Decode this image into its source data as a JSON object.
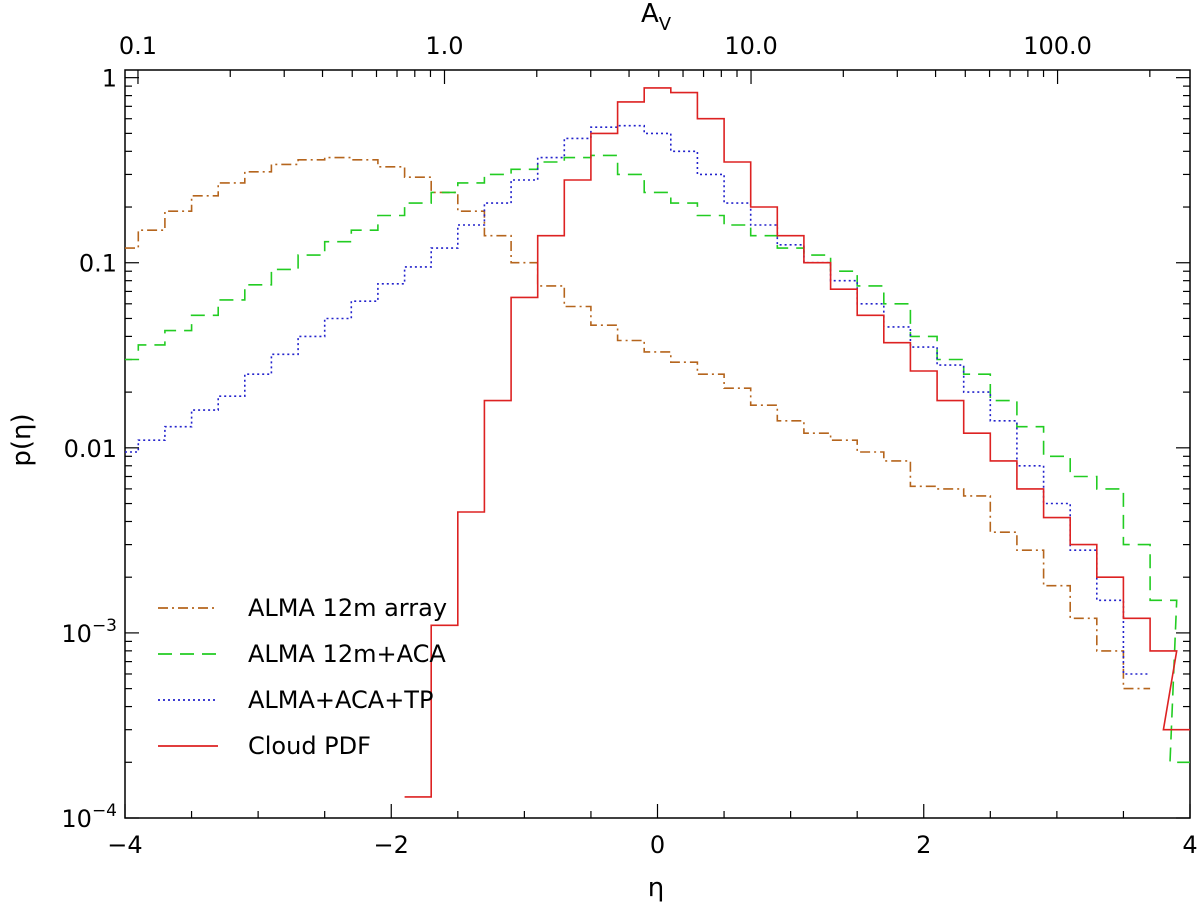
{
  "chart_data": {
    "type": "line",
    "xlabel": "η",
    "ylabel": "p(η)",
    "top_axis_label": "A",
    "top_axis_label_sub": "V",
    "xlim": [
      -4,
      4
    ],
    "ylim": [
      0.0001,
      1.1
    ],
    "y_scale": "log",
    "x_ticks": [
      -4,
      -2,
      0,
      2,
      4
    ],
    "x_tick_labels": [
      "−4",
      "−2",
      "0",
      "2",
      "4"
    ],
    "top_ticks": [
      0.1,
      1.0,
      10.0,
      100.0
    ],
    "top_tick_labels": [
      "0.1",
      "1.0",
      "10.0",
      "100.0"
    ],
    "top_axis_eta_of_av_1": -1.6,
    "y_ticks": [
      0.0001,
      0.001,
      0.01,
      0.1,
      1
    ],
    "y_tick_labels": [
      {
        "base": "10",
        "exp": "−4"
      },
      {
        "base": "10",
        "exp": "−3"
      },
      {
        "text": "0.01"
      },
      {
        "text": "0.1"
      },
      {
        "text": "1"
      }
    ],
    "legend_position": "bottom-left",
    "series": [
      {
        "name": "ALMA 12m array",
        "color": "#b5651d",
        "dash": "10,4,2,4",
        "x": [
          -4.0,
          -3.8,
          -3.6,
          -3.4,
          -3.2,
          -3.0,
          -2.8,
          -2.6,
          -2.4,
          -2.2,
          -2.0,
          -1.8,
          -1.6,
          -1.4,
          -1.2,
          -1.0,
          -0.8,
          -0.6,
          -0.4,
          -0.2,
          0.0,
          0.2,
          0.4,
          0.6,
          0.8,
          1.0,
          1.2,
          1.4,
          1.6,
          1.8,
          2.0,
          2.2,
          2.4,
          2.6,
          2.8,
          3.0,
          3.2,
          3.4,
          3.6
        ],
        "values": [
          0.12,
          0.15,
          0.19,
          0.23,
          0.27,
          0.31,
          0.34,
          0.36,
          0.37,
          0.36,
          0.33,
          0.29,
          0.24,
          0.19,
          0.14,
          0.1,
          0.075,
          0.058,
          0.046,
          0.038,
          0.033,
          0.029,
          0.025,
          0.021,
          0.017,
          0.014,
          0.012,
          0.011,
          0.0095,
          0.0085,
          0.0062,
          0.006,
          0.0055,
          0.0035,
          0.0028,
          0.0018,
          0.0012,
          0.0008,
          0.0005
        ]
      },
      {
        "name": "ALMA 12m+ACA",
        "color": "#22cc22",
        "dash": "14,8",
        "x": [
          -4.0,
          -3.8,
          -3.6,
          -3.4,
          -3.2,
          -3.0,
          -2.8,
          -2.6,
          -2.4,
          -2.2,
          -2.0,
          -1.8,
          -1.6,
          -1.4,
          -1.2,
          -1.0,
          -0.8,
          -0.6,
          -0.4,
          -0.2,
          0.0,
          0.2,
          0.4,
          0.6,
          0.8,
          1.0,
          1.2,
          1.4,
          1.6,
          1.8,
          2.0,
          2.2,
          2.4,
          2.6,
          2.8,
          3.0,
          3.2,
          3.4,
          3.6,
          3.8,
          3.95
        ],
        "values": [
          0.03,
          0.036,
          0.043,
          0.052,
          0.063,
          0.076,
          0.092,
          0.11,
          0.13,
          0.15,
          0.18,
          0.21,
          0.24,
          0.27,
          0.3,
          0.32,
          0.35,
          0.37,
          0.38,
          0.3,
          0.24,
          0.21,
          0.18,
          0.16,
          0.14,
          0.12,
          0.11,
          0.09,
          0.075,
          0.06,
          0.04,
          0.03,
          0.025,
          0.018,
          0.013,
          0.009,
          0.007,
          0.006,
          0.003,
          0.0015,
          0.0002
        ]
      },
      {
        "name": "ALMA+ACA+TP",
        "color": "#2222cc",
        "dash": "2,3",
        "x": [
          -4.0,
          -3.8,
          -3.6,
          -3.4,
          -3.2,
          -3.0,
          -2.8,
          -2.6,
          -2.4,
          -2.2,
          -2.0,
          -1.8,
          -1.6,
          -1.4,
          -1.2,
          -1.0,
          -0.8,
          -0.6,
          -0.4,
          -0.2,
          0.0,
          0.2,
          0.4,
          0.6,
          0.8,
          1.0,
          1.2,
          1.4,
          1.6,
          1.8,
          2.0,
          2.2,
          2.4,
          2.6,
          2.8,
          3.0,
          3.2,
          3.4,
          3.6
        ],
        "values": [
          0.0095,
          0.011,
          0.013,
          0.016,
          0.019,
          0.025,
          0.032,
          0.04,
          0.05,
          0.062,
          0.077,
          0.095,
          0.12,
          0.16,
          0.21,
          0.28,
          0.37,
          0.47,
          0.54,
          0.55,
          0.5,
          0.4,
          0.3,
          0.21,
          0.16,
          0.125,
          0.1,
          0.08,
          0.06,
          0.045,
          0.035,
          0.028,
          0.02,
          0.014,
          0.008,
          0.005,
          0.0028,
          0.0015,
          0.0006
        ]
      },
      {
        "name": "Cloud PDF",
        "color": "#dd2222",
        "dash": "",
        "x": [
          -1.8,
          -1.6,
          -1.4,
          -1.2,
          -1.0,
          -0.8,
          -0.6,
          -0.4,
          -0.2,
          0.0,
          0.2,
          0.4,
          0.6,
          0.8,
          1.0,
          1.2,
          1.4,
          1.6,
          1.8,
          2.0,
          2.2,
          2.4,
          2.6,
          2.8,
          3.0,
          3.2,
          3.4,
          3.6,
          3.8,
          3.9
        ],
        "values": [
          0.00013,
          0.0011,
          0.0045,
          0.018,
          0.065,
          0.14,
          0.28,
          0.5,
          0.74,
          0.88,
          0.83,
          0.6,
          0.35,
          0.2,
          0.14,
          0.1,
          0.072,
          0.052,
          0.037,
          0.026,
          0.018,
          0.012,
          0.0085,
          0.006,
          0.0042,
          0.003,
          0.002,
          0.0012,
          0.0008,
          0.0003
        ]
      }
    ]
  }
}
